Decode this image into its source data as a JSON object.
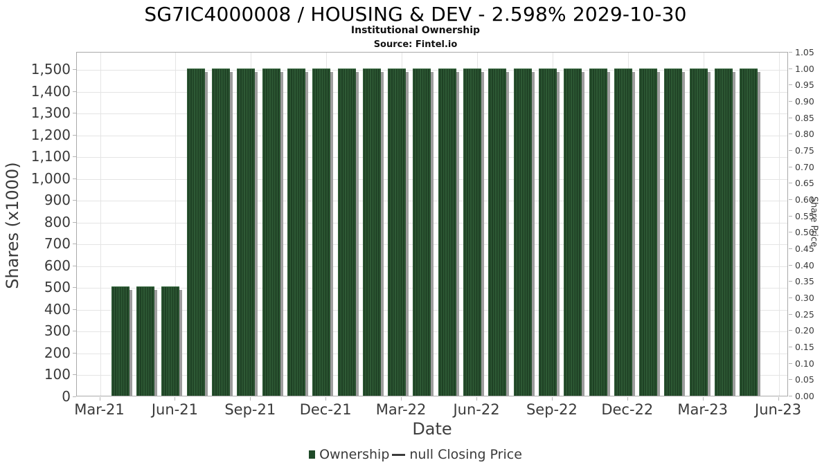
{
  "header": {
    "title": "SG7IC4000008 / HOUSING & DEV - 2.598% 2029-10-30",
    "subtitle": "Institutional Ownership",
    "source": "Source: Fintel.io"
  },
  "chart_data": {
    "type": "bar",
    "title": "SG7IC4000008 / HOUSING & DEV - 2.598% 2029-10-30",
    "subtitle": "Institutional Ownership",
    "source": "Source: Fintel.io",
    "xlabel": "Date",
    "x": [
      "Apr-21",
      "May-21",
      "Jun-21",
      "Jul-21",
      "Aug-21",
      "Sep-21",
      "Oct-21",
      "Nov-21",
      "Dec-21",
      "Jan-22",
      "Feb-22",
      "Mar-22",
      "Apr-22",
      "May-22",
      "Jun-22",
      "Jul-22",
      "Aug-22",
      "Sep-22",
      "Oct-22",
      "Nov-22",
      "Dec-22",
      "Jan-23",
      "Feb-23",
      "Mar-23",
      "Apr-23",
      "May-23"
    ],
    "series": [
      {
        "name": "Ownership",
        "values": [
          500,
          500,
          500,
          1500,
          1500,
          1500,
          1500,
          1500,
          1500,
          1500,
          1500,
          1500,
          1500,
          1500,
          1500,
          1500,
          1500,
          1500,
          1500,
          1500,
          1500,
          1500,
          1500,
          1500,
          1500,
          1500
        ]
      }
    ],
    "closing_price_series": {
      "name": "null Closing Price",
      "values": []
    },
    "x_ticks": [
      "Mar-21",
      "Jun-21",
      "Sep-21",
      "Dec-21",
      "Mar-22",
      "Jun-22",
      "Sep-22",
      "Dec-22",
      "Mar-23",
      "Jun-23"
    ],
    "left_axis": {
      "label": "Shares (x1000)",
      "tick_values": [
        0,
        100,
        200,
        300,
        400,
        500,
        600,
        700,
        800,
        900,
        1000,
        1100,
        1200,
        1300,
        1400,
        1500
      ],
      "tick_labels": [
        "0",
        "100",
        "200",
        "300",
        "400",
        "500",
        "600",
        "700",
        "800",
        "900",
        "1,000",
        "1,100",
        "1,200",
        "1,300",
        "1,400",
        "1,500"
      ],
      "range": [
        0,
        1583
      ],
      "grid": true
    },
    "right_axis": {
      "label": "Share Price",
      "tick_values": [
        0.0,
        0.05,
        0.1,
        0.15,
        0.2,
        0.25,
        0.3,
        0.35,
        0.4,
        0.45,
        0.5,
        0.55,
        0.6,
        0.65,
        0.7,
        0.75,
        0.8,
        0.85,
        0.9,
        0.95,
        1.0,
        1.05
      ],
      "tick_labels": [
        "0.00",
        "0.05",
        "0.10",
        "0.15",
        "0.20",
        "0.25",
        "0.30",
        "0.35",
        "0.40",
        "0.45",
        "0.50",
        "0.55",
        "0.60",
        "0.65",
        "0.70",
        "0.75",
        "0.80",
        "0.85",
        "0.90",
        "0.95",
        "1.00",
        "1.05"
      ],
      "range": [
        0,
        1.052
      ],
      "grid": false
    },
    "legend": [
      {
        "label": "Ownership",
        "marker": "square",
        "color": "#1f4a28"
      },
      {
        "label": "null Closing Price",
        "marker": "line",
        "color": "#3c3c3c"
      }
    ],
    "legend_position": "bottom-center",
    "colors": {
      "bar_stripe_light": "#2e5a35",
      "bar_stripe_dark": "#1e4024",
      "bar_shadow": "#9d9d9d",
      "grid": "#e4e4e4",
      "axis_border": "#a9a9a9",
      "tick_text": "#3a3a3a",
      "title_text": "#000000"
    }
  }
}
